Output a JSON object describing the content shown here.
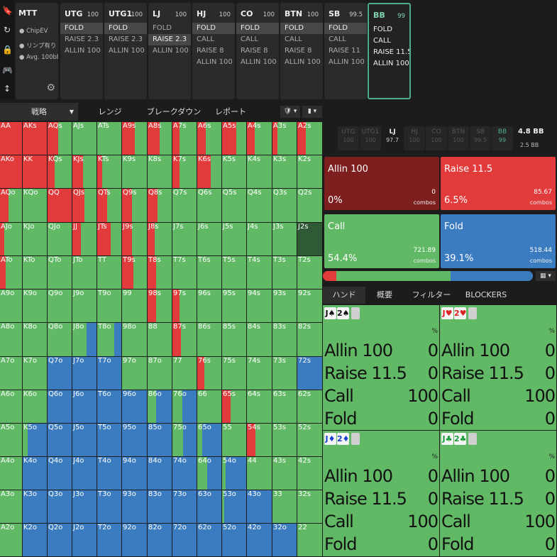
{
  "sidebar": {
    "icons": [
      "bookmark-icon",
      "refresh-icon",
      "lock-icon",
      "gamepad-icon",
      "compress-icon"
    ]
  },
  "game": {
    "title": "MTT",
    "options": [
      "ChipEV",
      "リンプ有り",
      "Avg. 100bb"
    ]
  },
  "positions": [
    {
      "name": "UTG",
      "stack": "100",
      "actions": [
        "FOLD",
        "RAISE 2.3",
        "ALLIN 100"
      ],
      "sel": 0
    },
    {
      "name": "UTG1",
      "stack": "100",
      "actions": [
        "FOLD",
        "RAISE 2.3",
        "ALLIN 100"
      ],
      "sel": 0
    },
    {
      "name": "LJ",
      "stack": "100",
      "actions": [
        "FOLD",
        "RAISE 2.3",
        "ALLIN 100"
      ],
      "sel": 1
    },
    {
      "name": "HJ",
      "stack": "100",
      "actions": [
        "FOLD",
        "CALL",
        "RAISE 8",
        "ALLIN 100"
      ],
      "sel": 0
    },
    {
      "name": "CO",
      "stack": "100",
      "actions": [
        "FOLD",
        "CALL",
        "RAISE 8",
        "ALLIN 100"
      ],
      "sel": 0
    },
    {
      "name": "BTN",
      "stack": "100",
      "actions": [
        "FOLD",
        "CALL",
        "RAISE 8",
        "ALLIN 100"
      ],
      "sel": 0
    },
    {
      "name": "SB",
      "stack": "99.5",
      "actions": [
        "FOLD",
        "CALL",
        "RAISE 11",
        "ALLIN 100"
      ],
      "sel": 0
    },
    {
      "name": "BB",
      "stack": "99",
      "actions": [
        "FOLD",
        "CALL",
        "RAISE 11.5",
        "ALLIN 100"
      ],
      "sel": -1,
      "active": true
    }
  ],
  "tabs": [
    "戦略",
    "レンジ",
    "ブレークダウン",
    "レポート"
  ],
  "matrix_rows": [
    [
      "AA",
      "AKs",
      "AQs",
      "AJs",
      "ATs",
      "A9s",
      "A8s",
      "A7s",
      "A6s",
      "A5s",
      "A4s",
      "A3s",
      "A2s"
    ],
    [
      "AKo",
      "KK",
      "KQs",
      "KJs",
      "KTs",
      "K9s",
      "K8s",
      "K7s",
      "K6s",
      "K5s",
      "K4s",
      "K3s",
      "K2s"
    ],
    [
      "AQo",
      "KQo",
      "QQ",
      "QJs",
      "QTs",
      "Q9s",
      "Q8s",
      "Q7s",
      "Q6s",
      "Q5s",
      "Q4s",
      "Q3s",
      "Q2s"
    ],
    [
      "AJo",
      "KJo",
      "QJo",
      "JJ",
      "JTs",
      "J9s",
      "J8s",
      "J7s",
      "J6s",
      "J5s",
      "J4s",
      "J3s",
      "J2s"
    ],
    [
      "ATo",
      "KTo",
      "QTo",
      "JTo",
      "TT",
      "T9s",
      "T8s",
      "T7s",
      "T6s",
      "T5s",
      "T4s",
      "T3s",
      "T2s"
    ],
    [
      "A9o",
      "K9o",
      "Q9o",
      "J9o",
      "T9o",
      "99",
      "98s",
      "97s",
      "96s",
      "95s",
      "94s",
      "93s",
      "92s"
    ],
    [
      "A8o",
      "K8o",
      "Q8o",
      "J8o",
      "T8o",
      "98o",
      "88",
      "87s",
      "86s",
      "85s",
      "84s",
      "83s",
      "82s"
    ],
    [
      "A7o",
      "K7o",
      "Q7o",
      "J7o",
      "T7o",
      "97o",
      "87o",
      "77",
      "76s",
      "75s",
      "74s",
      "73s",
      "72s"
    ],
    [
      "A6o",
      "K6o",
      "Q6o",
      "J6o",
      "T6o",
      "96o",
      "86o",
      "76o",
      "66",
      "65s",
      "64s",
      "63s",
      "62s"
    ],
    [
      "A5o",
      "K5o",
      "Q5o",
      "J5o",
      "T5o",
      "95o",
      "85o",
      "75o",
      "65o",
      "55",
      "54s",
      "53s",
      "52s"
    ],
    [
      "A4o",
      "K4o",
      "Q4o",
      "J4o",
      "T4o",
      "94o",
      "84o",
      "74o",
      "64o",
      "54o",
      "44",
      "43s",
      "42s"
    ],
    [
      "A3o",
      "K3o",
      "Q3o",
      "J3o",
      "T3o",
      "93o",
      "83o",
      "73o",
      "63o",
      "53o",
      "43o",
      "33",
      "32s"
    ],
    [
      "A2o",
      "K2o",
      "Q2o",
      "J2o",
      "T2o",
      "92o",
      "82o",
      "72o",
      "62o",
      "52o",
      "42o",
      "32o",
      "22"
    ]
  ],
  "matrix_mix": {
    "AA": [
      0,
      1,
      0,
      0
    ],
    "AKs": [
      0,
      1,
      0,
      0
    ],
    "AQs": [
      0,
      0.45,
      0.55,
      0
    ],
    "AJs": [
      0,
      0,
      1,
      0
    ],
    "ATs": [
      0,
      0,
      1,
      0
    ],
    "A9s": [
      0,
      0.5,
      0.5,
      0
    ],
    "A8s": [
      0,
      0.5,
      0.5,
      0
    ],
    "A7s": [
      0,
      0.3,
      0.7,
      0
    ],
    "A6s": [
      0,
      0.35,
      0.65,
      0
    ],
    "A5s": [
      0,
      0.6,
      0.4,
      0
    ],
    "A4s": [
      0,
      0.3,
      0.7,
      0
    ],
    "A3s": [
      0,
      0.2,
      0.8,
      0
    ],
    "A2s": [
      0,
      0.35,
      0.65,
      0
    ],
    "AKo": [
      0,
      1,
      0,
      0
    ],
    "KK": [
      0,
      1,
      0,
      0
    ],
    "KQs": [
      0,
      0.3,
      0.7,
      0
    ],
    "KJs": [
      0,
      0.45,
      0.55,
      0
    ],
    "KTs": [
      0,
      0.2,
      0.8,
      0
    ],
    "K7s": [
      0,
      0.3,
      0.7,
      0
    ],
    "K6s": [
      0,
      0.55,
      0.45,
      0
    ],
    "AQo": [
      0,
      0.4,
      0.6,
      0
    ],
    "QQ": [
      0,
      1,
      0,
      0
    ],
    "QJs": [
      0,
      0.5,
      0.5,
      0
    ],
    "QTs": [
      0,
      0.4,
      0.6,
      0
    ],
    "Q9s": [
      0,
      0.4,
      0.6,
      0
    ],
    "Q8s": [
      0,
      0.4,
      0.6,
      0
    ],
    "AJo": [
      0,
      0.2,
      0.8,
      0
    ],
    "JJ": [
      0,
      0.35,
      0.65,
      0
    ],
    "JTs": [
      0,
      0.55,
      0.45,
      0
    ],
    "J9s": [
      0,
      0.4,
      0.6,
      0
    ],
    "J8s": [
      0,
      0.3,
      0.7,
      0
    ],
    "ATo": [
      0,
      0.25,
      0.75,
      0
    ],
    "T9s": [
      0,
      0.45,
      0.55,
      0
    ],
    "T8s": [
      0,
      0.35,
      0.65,
      0
    ],
    "98s": [
      0,
      0.35,
      0.65,
      0
    ],
    "97s": [
      0,
      0.3,
      0.7,
      0
    ],
    "87s": [
      0,
      0.35,
      0.65,
      0
    ],
    "76s": [
      0,
      0.3,
      0.7,
      0
    ],
    "65s": [
      0,
      0.35,
      0.65,
      0
    ],
    "54s": [
      0,
      0.35,
      0.65,
      0
    ],
    "J8o": [
      0,
      0,
      0.6,
      0.4
    ],
    "T8o": [
      0,
      0,
      0.7,
      0.3
    ],
    "Q7o": [
      0,
      0,
      0,
      1
    ],
    "J7o": [
      0,
      0,
      0,
      1
    ],
    "T7o": [
      0,
      0,
      0,
      1
    ],
    "72s": [
      0,
      0,
      0,
      1
    ],
    "Q6o": [
      0,
      0,
      0,
      1
    ],
    "J6o": [
      0,
      0,
      0,
      1
    ],
    "T6o": [
      0,
      0,
      0,
      1
    ],
    "96o": [
      0,
      0,
      0,
      1
    ],
    "86o": [
      0,
      0,
      0.35,
      0.65
    ],
    "76o": [
      0,
      0,
      0.4,
      0.6
    ],
    "K5o": [
      0,
      0,
      0.2,
      0.8
    ],
    "Q5o": [
      0,
      0,
      0,
      1
    ],
    "J5o": [
      0,
      0,
      0,
      1
    ],
    "T5o": [
      0,
      0,
      0,
      1
    ],
    "95o": [
      0,
      0,
      0,
      1
    ],
    "85o": [
      0,
      0,
      0,
      1
    ],
    "75o": [
      0,
      0,
      0.45,
      0.55
    ],
    "65o": [
      0,
      0,
      0.2,
      0.8
    ],
    "K4o": [
      0,
      0,
      0,
      1
    ],
    "Q4o": [
      0,
      0,
      0,
      1
    ],
    "J4o": [
      0,
      0,
      0,
      1
    ],
    "T4o": [
      0,
      0,
      0,
      1
    ],
    "94o": [
      0,
      0,
      0,
      1
    ],
    "84o": [
      0,
      0,
      0,
      1
    ],
    "74o": [
      0,
      0,
      0,
      1
    ],
    "64o": [
      0,
      0,
      0.4,
      0.6
    ],
    "54o": [
      0,
      0,
      0.15,
      0.85
    ],
    "K3o": [
      0,
      0,
      0,
      1
    ],
    "Q3o": [
      0,
      0,
      0,
      1
    ],
    "J3o": [
      0,
      0,
      0,
      1
    ],
    "T3o": [
      0,
      0,
      0,
      1
    ],
    "93o": [
      0,
      0,
      0,
      1
    ],
    "83o": [
      0,
      0,
      0,
      1
    ],
    "73o": [
      0,
      0,
      0,
      1
    ],
    "63o": [
      0,
      0,
      0,
      1
    ],
    "53o": [
      0,
      0,
      0.1,
      0.9
    ],
    "43o": [
      0,
      0,
      0,
      1
    ],
    "K2o": [
      0,
      0,
      0,
      1
    ],
    "Q2o": [
      0,
      0,
      0,
      1
    ],
    "J2o": [
      0,
      0,
      0,
      1
    ],
    "T2o": [
      0,
      0,
      0,
      1
    ],
    "92o": [
      0,
      0,
      0,
      1
    ],
    "82o": [
      0,
      0,
      0,
      1
    ],
    "72o": [
      0,
      0,
      0,
      1
    ],
    "62o": [
      0,
      0,
      0,
      1
    ],
    "52o": [
      0,
      0,
      0,
      1
    ],
    "42o": [
      0,
      0,
      0,
      1
    ],
    "32o": [
      0,
      0,
      0,
      1
    ]
  },
  "highlight_cell": "J2s",
  "tab_strip": [
    {
      "name": "UTG",
      "stack": "100"
    },
    {
      "name": "UTG1",
      "stack": "100"
    },
    {
      "name": "LJ",
      "stack": "97.7",
      "active": true
    },
    {
      "name": "HJ",
      "stack": "100"
    },
    {
      "name": "CO",
      "stack": "100"
    },
    {
      "name": "BTN",
      "stack": "100"
    },
    {
      "name": "SB",
      "stack": "99.5"
    },
    {
      "name": "BB",
      "stack": "99",
      "accent": true
    }
  ],
  "pot": {
    "main": "4.8 BB",
    "sub": "2.5 BB"
  },
  "actions": [
    {
      "label": "Allin 100",
      "pct": "0%",
      "combos": "0",
      "combos_label": "combos",
      "color": "#7d1f1f"
    },
    {
      "label": "Raise 11.5",
      "pct": "6.5%",
      "combos": "85.67",
      "combos_label": "combos",
      "color": "#e23b3b"
    },
    {
      "label": "Call",
      "pct": "54.4%",
      "combos": "721.89",
      "combos_label": "combos",
      "color": "#61b966"
    },
    {
      "label": "Fold",
      "pct": "39.1%",
      "combos": "518.44",
      "combos_label": "combos",
      "color": "#3b7bbf"
    }
  ],
  "freq_bar": [
    0.0,
    0.065,
    0.544,
    0.391
  ],
  "bottom_tabs": [
    "ハンド",
    "概要",
    "フィルター",
    "BLOCKERS"
  ],
  "hands": [
    {
      "cards": [
        {
          "r": "J",
          "s": "♠",
          "c": "#111"
        },
        {
          "r": "2",
          "s": "♠",
          "c": "#111"
        }
      ],
      "pct": "%",
      "rows": [
        [
          "Allin 100",
          "0"
        ],
        [
          "Raise 11.5",
          "0"
        ],
        [
          "Call",
          "100"
        ],
        [
          "Fold",
          "0"
        ]
      ]
    },
    {
      "cards": [
        {
          "r": "J",
          "s": "♥",
          "c": "#d22"
        },
        {
          "r": "2",
          "s": "♥",
          "c": "#d22"
        }
      ],
      "pct": "%",
      "rows": [
        [
          "Allin 100",
          "0"
        ],
        [
          "Raise 11.5",
          "0"
        ],
        [
          "Call",
          "100"
        ],
        [
          "Fold",
          "0"
        ]
      ]
    },
    {
      "cards": [
        {
          "r": "J",
          "s": "♦",
          "c": "#1a3fd4"
        },
        {
          "r": "2",
          "s": "♦",
          "c": "#1a3fd4"
        }
      ],
      "pct": "%",
      "rows": [
        [
          "Allin 100",
          "0"
        ],
        [
          "Raise 11.5",
          "0"
        ],
        [
          "Call",
          "100"
        ],
        [
          "Fold",
          "0"
        ]
      ]
    },
    {
      "cards": [
        {
          "r": "J",
          "s": "♣",
          "c": "#1a9a3a"
        },
        {
          "r": "2",
          "s": "♣",
          "c": "#1a9a3a"
        }
      ],
      "pct": "%",
      "rows": [
        [
          "Allin 100",
          "0"
        ],
        [
          "Raise 11.5",
          "0"
        ],
        [
          "Call",
          "100"
        ],
        [
          "Fold",
          "0"
        ]
      ]
    }
  ],
  "colors": {
    "allin": "#7d1f1f",
    "raise": "#e23b3b",
    "call": "#61b966",
    "fold": "#3b7bbf",
    "accent": "#4fae8a"
  }
}
